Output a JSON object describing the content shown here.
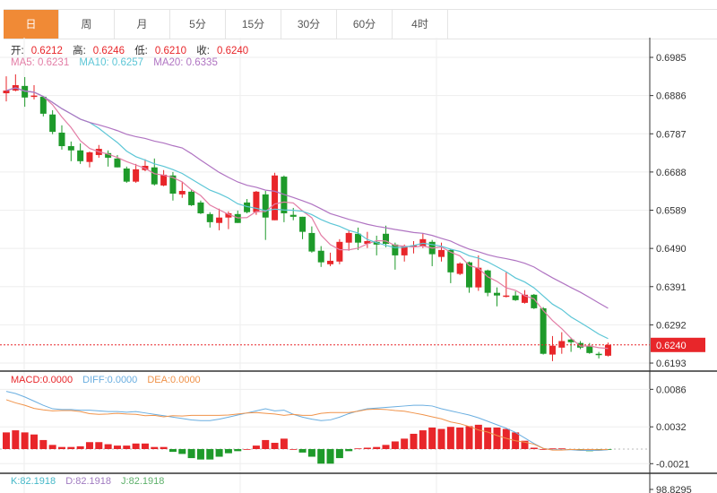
{
  "tabs": [
    {
      "label": "日",
      "active": true
    },
    {
      "label": "周"
    },
    {
      "label": "月"
    },
    {
      "label": "5分"
    },
    {
      "label": "15分"
    },
    {
      "label": "30分"
    },
    {
      "label": "60分"
    },
    {
      "label": "4时"
    }
  ],
  "ohlc_legend": {
    "open_label": "开:",
    "open": "0.6212",
    "high_label": "高:",
    "high": "0.6246",
    "low_label": "低:",
    "low": "0.6210",
    "close_label": "收:",
    "close": "0.6240"
  },
  "ma_legend": {
    "ma5": "MA5: 0.6231",
    "ma10": "MA10: 0.6257",
    "ma20": "MA20: 0.6335"
  },
  "macd_legend": {
    "macd": "MACD:0.0000",
    "diff": "DIFF:0.0000",
    "dea": "DEA:0.0000"
  },
  "kdj_legend": {
    "k": "K:82.1918",
    "d": "D:82.1918",
    "j": "J:82.1918"
  },
  "price_axis": [
    "0.6985",
    "0.6886",
    "0.6787",
    "0.6688",
    "0.6589",
    "0.6490",
    "0.6391",
    "0.6292",
    "0.6193"
  ],
  "current_price": "0.6240",
  "macd_axis": [
    "0.0086",
    "0.0032",
    "-0.0021"
  ],
  "kdj_axis": [
    "98.8295"
  ],
  "colors": {
    "up": "#e8262a",
    "down": "#1e9a2a",
    "ma5": "#e37ea6",
    "ma10": "#5cc6d6",
    "ma20": "#b074c2",
    "diff": "#6aaee0",
    "dea": "#f0934a"
  },
  "chart_data": {
    "type": "candlestick",
    "price_range": [
      0.615,
      0.703
    ],
    "candles": [
      [
        0.6892,
        0.6936,
        0.6871,
        0.6899
      ],
      [
        0.6899,
        0.6941,
        0.6897,
        0.6913
      ],
      [
        0.6911,
        0.6934,
        0.6857,
        0.6881
      ],
      [
        0.6884,
        0.6913,
        0.6876,
        0.6886
      ],
      [
        0.6883,
        0.6885,
        0.6832,
        0.6839
      ],
      [
        0.6837,
        0.6848,
        0.6786,
        0.6792
      ],
      [
        0.679,
        0.6809,
        0.6746,
        0.6755
      ],
      [
        0.6755,
        0.6767,
        0.6716,
        0.6744
      ],
      [
        0.6744,
        0.6762,
        0.6709,
        0.6716
      ],
      [
        0.6714,
        0.6741,
        0.67,
        0.6739
      ],
      [
        0.6732,
        0.6758,
        0.6725,
        0.6748
      ],
      [
        0.6737,
        0.6744,
        0.6702,
        0.6725
      ],
      [
        0.6723,
        0.6732,
        0.67,
        0.67
      ],
      [
        0.6697,
        0.6702,
        0.666,
        0.6663
      ],
      [
        0.6663,
        0.6709,
        0.666,
        0.6695
      ],
      [
        0.6693,
        0.6721,
        0.669,
        0.6704
      ],
      [
        0.67,
        0.6723,
        0.6653,
        0.6656
      ],
      [
        0.6653,
        0.6693,
        0.6651,
        0.6681
      ],
      [
        0.6679,
        0.6688,
        0.6614,
        0.6632
      ],
      [
        0.663,
        0.6663,
        0.6621,
        0.6639
      ],
      [
        0.6637,
        0.6642,
        0.66,
        0.6602
      ],
      [
        0.6609,
        0.6614,
        0.6579,
        0.6581
      ],
      [
        0.6579,
        0.6584,
        0.6544,
        0.6558
      ],
      [
        0.6556,
        0.6593,
        0.6537,
        0.657
      ],
      [
        0.657,
        0.6586,
        0.654,
        0.6581
      ],
      [
        0.6579,
        0.6588,
        0.6556,
        0.6556
      ],
      [
        0.6609,
        0.6618,
        0.6581,
        0.6584
      ],
      [
        0.6584,
        0.6639,
        0.6577,
        0.6637
      ],
      [
        0.663,
        0.6639,
        0.6512,
        0.657
      ],
      [
        0.6563,
        0.6686,
        0.6563,
        0.6679
      ],
      [
        0.6676,
        0.6679,
        0.6558,
        0.6581
      ],
      [
        0.6577,
        0.6595,
        0.6563,
        0.6572
      ],
      [
        0.6572,
        0.6572,
        0.6514,
        0.6533
      ],
      [
        0.653,
        0.6547,
        0.6479,
        0.6482
      ],
      [
        0.6484,
        0.6496,
        0.6442,
        0.6454
      ],
      [
        0.6449,
        0.6479,
        0.6444,
        0.6458
      ],
      [
        0.6456,
        0.6514,
        0.6449,
        0.6507
      ],
      [
        0.6505,
        0.6537,
        0.6484,
        0.653
      ],
      [
        0.6528,
        0.6544,
        0.6486,
        0.6505
      ],
      [
        0.6502,
        0.6533,
        0.6491,
        0.6509
      ],
      [
        0.6507,
        0.6523,
        0.6472,
        0.65
      ],
      [
        0.6528,
        0.6549,
        0.6493,
        0.6502
      ],
      [
        0.65,
        0.6505,
        0.6435,
        0.6472
      ],
      [
        0.6472,
        0.65,
        0.6456,
        0.6496
      ],
      [
        0.6496,
        0.6509,
        0.6477,
        0.6498
      ],
      [
        0.6496,
        0.653,
        0.6491,
        0.6514
      ],
      [
        0.6507,
        0.6512,
        0.6444,
        0.6475
      ],
      [
        0.6468,
        0.6505,
        0.6456,
        0.6486
      ],
      [
        0.6486,
        0.6488,
        0.64,
        0.6428
      ],
      [
        0.6424,
        0.6454,
        0.6421,
        0.6451
      ],
      [
        0.6454,
        0.6456,
        0.6375,
        0.6389
      ],
      [
        0.6389,
        0.6472,
        0.638,
        0.644
      ],
      [
        0.6433,
        0.6435,
        0.6366,
        0.6375
      ],
      [
        0.6375,
        0.6389,
        0.634,
        0.6368
      ],
      [
        0.6366,
        0.6428,
        0.6363,
        0.6368
      ],
      [
        0.6368,
        0.6379,
        0.6354,
        0.6356
      ],
      [
        0.6349,
        0.6382,
        0.6347,
        0.637
      ],
      [
        0.637,
        0.6372,
        0.6333,
        0.6335
      ],
      [
        0.6335,
        0.6338,
        0.6215,
        0.6217
      ],
      [
        0.6215,
        0.6263,
        0.6198,
        0.6238
      ],
      [
        0.6233,
        0.6273,
        0.6217,
        0.625
      ],
      [
        0.6254,
        0.6259,
        0.6222,
        0.6247
      ],
      [
        0.6245,
        0.625,
        0.6229,
        0.6233
      ],
      [
        0.6238,
        0.6245,
        0.6217,
        0.6219
      ],
      [
        0.6217,
        0.6222,
        0.6205,
        0.6215
      ],
      [
        0.6212,
        0.6246,
        0.621,
        0.624
      ]
    ],
    "macd_range": [
      -0.0027,
      0.0112
    ],
    "macd_hist": [
      0.0024,
      0.0027,
      0.0024,
      0.0021,
      0.0013,
      0.0006,
      0.0003,
      0.0003,
      0.0004,
      0.001,
      0.001,
      0.0007,
      0.0005,
      0.0005,
      0.0008,
      0.0008,
      0.0003,
      0.0003,
      -0.0004,
      -0.0007,
      -0.0013,
      -0.0015,
      -0.0015,
      -0.0011,
      -0.0006,
      -0.0003,
      0.0,
      0.0005,
      0.0013,
      0.0009,
      0.0015,
      0.0,
      -0.0005,
      -0.0011,
      -0.0021,
      -0.0021,
      -0.0013,
      -0.0003,
      0.0001,
      0.0002,
      0.0003,
      0.0006,
      0.0011,
      0.0015,
      0.0022,
      0.0027,
      0.0031,
      0.0029,
      0.0032,
      0.0031,
      0.0033,
      0.0035,
      0.0031,
      0.0031,
      0.0029,
      0.0024,
      0.0012,
      0.0002,
      0.0,
      0.0001,
      0.0001,
      -0.0001,
      -0.0002,
      -0.0003,
      -0.0002,
      -0.0001
    ],
    "diff": [
      0.0083,
      0.008,
      0.0075,
      0.0069,
      0.0063,
      0.0058,
      0.0057,
      0.0057,
      0.0056,
      0.0056,
      0.0055,
      0.0054,
      0.0054,
      0.0053,
      0.0054,
      0.0052,
      0.005,
      0.0048,
      0.0046,
      0.0044,
      0.0042,
      0.0041,
      0.0041,
      0.0043,
      0.0046,
      0.0049,
      0.0052,
      0.0055,
      0.0058,
      0.0055,
      0.0056,
      0.005,
      0.0046,
      0.0043,
      0.0041,
      0.0042,
      0.0046,
      0.0051,
      0.0055,
      0.0058,
      0.0059,
      0.006,
      0.0061,
      0.0062,
      0.0063,
      0.0063,
      0.0062,
      0.0058,
      0.0055,
      0.0052,
      0.0049,
      0.0045,
      0.004,
      0.0035,
      0.003,
      0.0024,
      0.0016,
      0.0008,
      0.0001,
      -0.0001,
      -0.0001,
      -0.0001,
      -0.0002,
      -0.0002,
      -0.0002,
      -0.0001
    ]
  }
}
